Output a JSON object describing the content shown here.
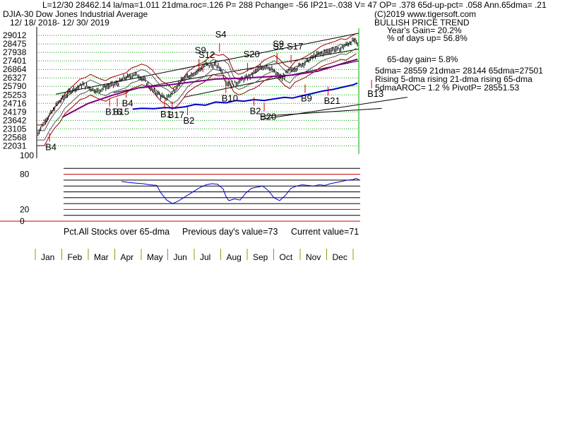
{
  "header": {
    "line1": "L=12/30   28462.14  la/ma=1.011 21dma.roc=.126 P=   288 Pchange= -56 IP21=-.038 V= 47 OP= .378 65d-up-pct= .058 Ann.65dma= .21",
    "title": "DJIA-30  Dow Jones Industrial Average",
    "range": "12/ 18/ 2018- 12/ 30/ 2019",
    "copyright": "(C)2019 www.tigersoft.com",
    "trend": "BULLISH PRICE TREND",
    "years_gain": "Year's Gain= 20.2%",
    "days_up": "% of days up= 56.8%",
    "gain65": "65-day gain= 5.8%",
    "dma_line": "5dma= 28559 21dma= 28144 65dma=27501",
    "rising_line": "Rising 5-dma  rising 21-dma  rising 65-dma",
    "aroc_line": "5dmaAROC= 1.2 %  PivotP= 28551.53"
  },
  "chart_data": [
    {
      "type": "line",
      "series_kind": "daily high-low bars with moving averages",
      "y_ticks": [
        "29012",
        "28475",
        "27938",
        "27401",
        "26864",
        "26327",
        "25790",
        "25253",
        "24716",
        "24179",
        "23642",
        "23105",
        "22568",
        "22031"
      ],
      "y_tick_values": [
        29012,
        28475,
        27938,
        27401,
        26864,
        26327,
        25790,
        25253,
        24716,
        24179,
        23642,
        23105,
        22568,
        22031
      ],
      "ylim": [
        21780,
        29240
      ],
      "x_months": [
        "Jan",
        "Feb",
        "Mar",
        "Apr",
        "May",
        "Jun",
        "Jul",
        "Aug",
        "Sep",
        "Oct",
        "Nov",
        "Dec"
      ],
      "price_path": [
        [
          0,
          22700
        ],
        [
          4,
          23300
        ],
        [
          8,
          23800
        ],
        [
          12,
          24150
        ],
        [
          16,
          24700
        ],
        [
          20,
          25000
        ],
        [
          24,
          25300
        ],
        [
          28,
          25600
        ],
        [
          32,
          25700
        ],
        [
          36,
          25900
        ],
        [
          40,
          25750
        ],
        [
          44,
          25600
        ],
        [
          48,
          25500
        ],
        [
          52,
          25700
        ],
        [
          56,
          25800
        ],
        [
          60,
          25900
        ],
        [
          64,
          26000
        ],
        [
          68,
          26300
        ],
        [
          72,
          26400
        ],
        [
          76,
          26550
        ],
        [
          80,
          26450
        ],
        [
          84,
          26200
        ],
        [
          88,
          25800
        ],
        [
          92,
          25450
        ],
        [
          96,
          25300
        ],
        [
          100,
          25000
        ],
        [
          104,
          25200
        ],
        [
          108,
          25600
        ],
        [
          112,
          26050
        ],
        [
          116,
          26300
        ],
        [
          120,
          26500
        ],
        [
          124,
          26650
        ],
        [
          128,
          26900
        ],
        [
          132,
          27200
        ],
        [
          136,
          27100
        ],
        [
          140,
          27150
        ],
        [
          144,
          26900
        ],
        [
          148,
          26100
        ],
        [
          152,
          25900
        ],
        [
          156,
          26000
        ],
        [
          160,
          26200
        ],
        [
          164,
          26300
        ],
        [
          168,
          26500
        ],
        [
          172,
          26800
        ],
        [
          176,
          26950
        ],
        [
          180,
          27100
        ],
        [
          184,
          26850
        ],
        [
          188,
          26500
        ],
        [
          192,
          26300
        ],
        [
          196,
          26700
        ],
        [
          200,
          26850
        ],
        [
          204,
          27000
        ],
        [
          208,
          27200
        ],
        [
          212,
          27400
        ],
        [
          216,
          27650
        ],
        [
          220,
          27800
        ],
        [
          224,
          27900
        ],
        [
          228,
          28000
        ],
        [
          232,
          28150
        ],
        [
          236,
          28100
        ],
        [
          240,
          28300
        ],
        [
          244,
          28500
        ],
        [
          248,
          28700
        ],
        [
          251,
          28462
        ]
      ],
      "dma_path": [
        [
          20,
          23850
        ],
        [
          40,
          24700
        ],
        [
          60,
          25250
        ],
        [
          80,
          25700
        ],
        [
          100,
          25850
        ],
        [
          120,
          26050
        ],
        [
          140,
          26250
        ],
        [
          160,
          26300
        ],
        [
          180,
          26400
        ],
        [
          200,
          26500
        ],
        [
          220,
          26750
        ],
        [
          240,
          27250
        ],
        [
          251,
          27501
        ]
      ],
      "signals": [
        {
          "label": "B4",
          "x": 10,
          "y": 22031,
          "color": "#000000"
        },
        {
          "label": "B4",
          "x": 70,
          "y": 24800,
          "color": "#000000"
        },
        {
          "label": "B16",
          "x": 57,
          "y": 24250,
          "color": "#000000"
        },
        {
          "label": "B15",
          "x": 63,
          "y": 24250,
          "color": "#000000"
        },
        {
          "label": "B1",
          "x": 100,
          "y": 24100,
          "color": "#000000"
        },
        {
          "label": "B17",
          "x": 106,
          "y": 24050,
          "color": "#000000"
        },
        {
          "label": "B2",
          "x": 118,
          "y": 23700,
          "color": "#000000"
        },
        {
          "label": "B10",
          "x": 148,
          "y": 25100,
          "color": "#000000"
        },
        {
          "label": "B2",
          "x": 170,
          "y": 24300,
          "color": "#000000"
        },
        {
          "label": "B20",
          "x": 178,
          "y": 23950,
          "color": "#000000"
        },
        {
          "label": "B9",
          "x": 210,
          "y": 25100,
          "color": "#000000"
        },
        {
          "label": "B21",
          "x": 228,
          "y": 24950,
          "color": "#000000"
        },
        {
          "label": "B13",
          "x": 262,
          "y": 25400,
          "color": "#000000"
        },
        {
          "label": "S9",
          "x": 127,
          "y": 27700,
          "color": "#000000"
        },
        {
          "label": "S12",
          "x": 130,
          "y": 27401,
          "color": "#000000"
        },
        {
          "label": "S4",
          "x": 143,
          "y": 28700,
          "color": "#000000"
        },
        {
          "label": "S20",
          "x": 165,
          "y": 27450,
          "color": "#000000"
        },
        {
          "label": "S9",
          "x": 188,
          "y": 28100,
          "color": "#000000"
        },
        {
          "label": "S2",
          "x": 188,
          "y": 27950,
          "color": "#000000"
        },
        {
          "label": "S17",
          "x": 199,
          "y": 27950,
          "color": "#000000"
        }
      ],
      "volume_path": [
        [
          75,
          24350
        ],
        [
          82,
          24400
        ],
        [
          92,
          24380
        ],
        [
          100,
          24450
        ],
        [
          108,
          24420
        ],
        [
          116,
          24500
        ],
        [
          124,
          24650
        ],
        [
          132,
          24600
        ],
        [
          140,
          24800
        ],
        [
          148,
          24750
        ],
        [
          156,
          24900
        ],
        [
          162,
          24850
        ],
        [
          170,
          24950
        ],
        [
          178,
          24900
        ],
        [
          186,
          25000
        ],
        [
          194,
          25100
        ],
        [
          200,
          25050
        ],
        [
          208,
          25200
        ],
        [
          216,
          25350
        ],
        [
          224,
          25500
        ],
        [
          232,
          25600
        ],
        [
          240,
          25750
        ],
        [
          248,
          25900
        ],
        [
          251,
          26000
        ]
      ]
    },
    {
      "type": "line",
      "title": "Pct.All Stocks over 65-dma",
      "previous_value_text": "Previous day's value=73",
      "current_value_text": "Current value=71",
      "y_ticks": [
        "80",
        "20",
        "0"
      ],
      "y_tick_values": [
        80,
        20,
        0
      ],
      "ylim": [
        0,
        100
      ],
      "top_label": "100",
      "values": [
        [
          0,
          68
        ],
        [
          5,
          66
        ],
        [
          10,
          65
        ],
        [
          15,
          64
        ],
        [
          20,
          62
        ],
        [
          25,
          61
        ],
        [
          28,
          48
        ],
        [
          32,
          36
        ],
        [
          36,
          30
        ],
        [
          40,
          34
        ],
        [
          44,
          40
        ],
        [
          48,
          46
        ],
        [
          52,
          52
        ],
        [
          56,
          58
        ],
        [
          60,
          62
        ],
        [
          64,
          64
        ],
        [
          68,
          63
        ],
        [
          72,
          55
        ],
        [
          74,
          42
        ],
        [
          76,
          35
        ],
        [
          80,
          38
        ],
        [
          84,
          36
        ],
        [
          88,
          48
        ],
        [
          92,
          56
        ],
        [
          96,
          58
        ],
        [
          100,
          60
        ],
        [
          104,
          52
        ],
        [
          108,
          40
        ],
        [
          112,
          35
        ],
        [
          116,
          44
        ],
        [
          120,
          56
        ],
        [
          124,
          60
        ],
        [
          128,
          62
        ],
        [
          132,
          61
        ],
        [
          136,
          60
        ],
        [
          140,
          62
        ],
        [
          144,
          61
        ],
        [
          148,
          64
        ],
        [
          152,
          66
        ],
        [
          156,
          68
        ],
        [
          160,
          70
        ],
        [
          164,
          71
        ],
        [
          166,
          73
        ],
        [
          168,
          71
        ]
      ]
    }
  ]
}
